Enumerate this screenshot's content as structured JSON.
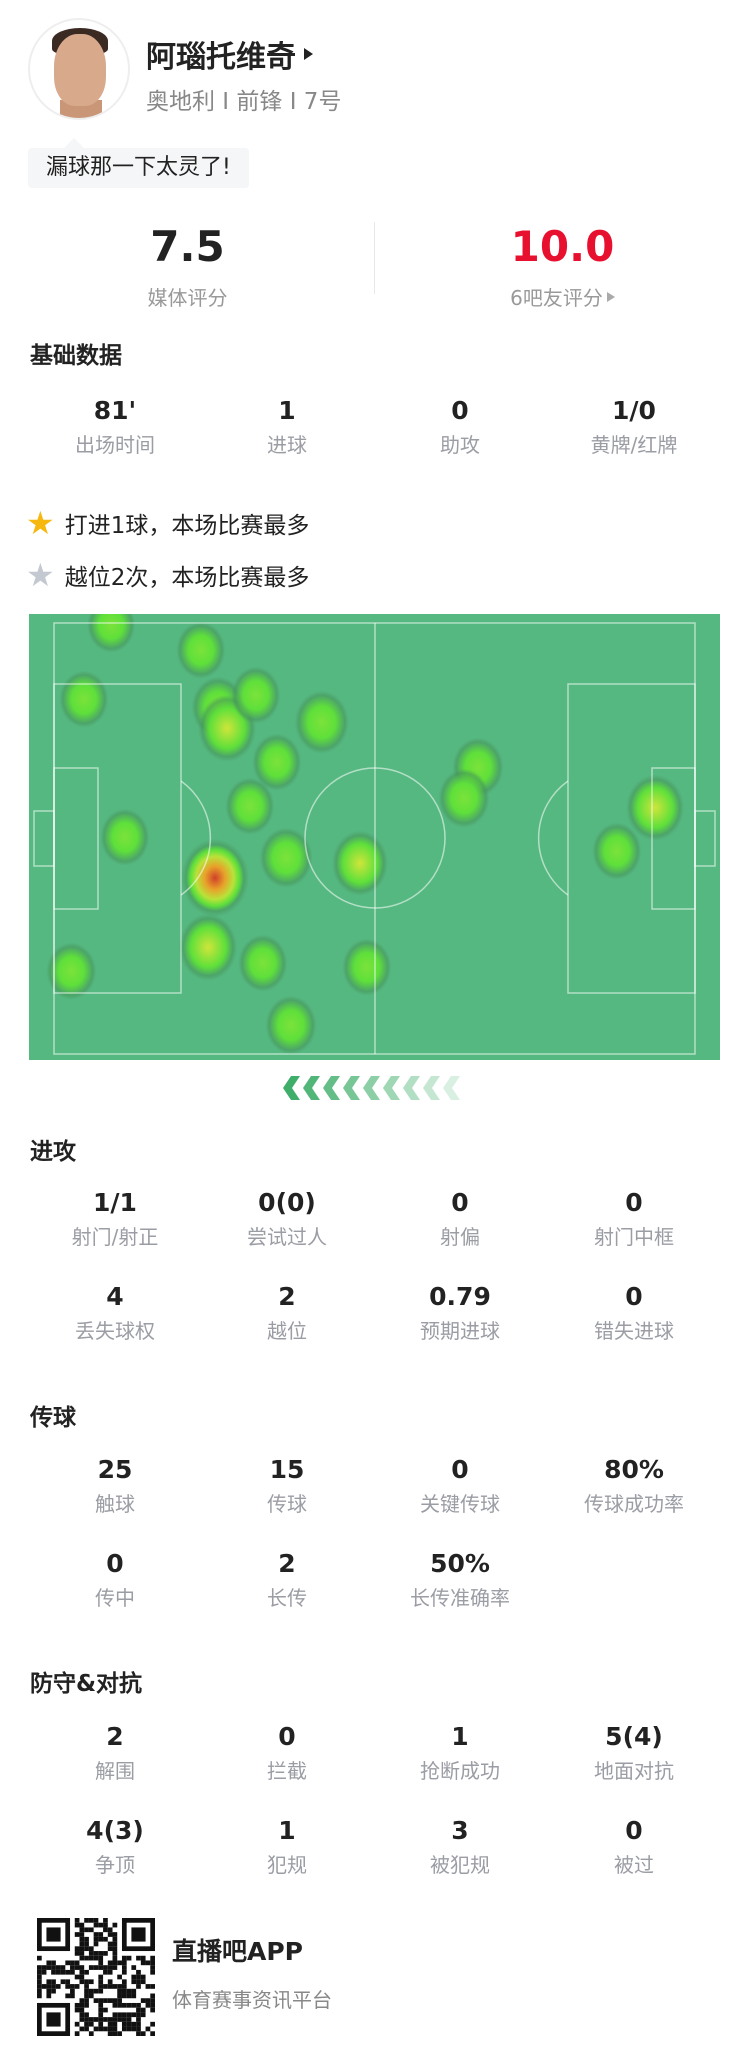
{
  "player": {
    "name": "阿瑙托维奇",
    "subtitle": "奥地利 I 前锋 I 7号",
    "comment": "漏球那一下太灵了!"
  },
  "ratings": {
    "media": {
      "value": "7.5",
      "label": "媒体评分"
    },
    "fans": {
      "value": "10.0",
      "label": "6吧友评分",
      "color": "#e8102f"
    }
  },
  "basic": {
    "title": "基础数据",
    "stats": [
      {
        "value": "81'",
        "label": "出场时间"
      },
      {
        "value": "1",
        "label": "进球"
      },
      {
        "value": "0",
        "label": "助攻"
      },
      {
        "value": "1/0",
        "label": "黄牌/红牌"
      }
    ]
  },
  "highlights": [
    {
      "icon": "gold-star-icon",
      "color": "#f6b80f",
      "text": "打进1球，本场比赛最多"
    },
    {
      "icon": "silver-star-icon",
      "color": "#c4c8d0",
      "text": "越位2次，本场比赛最多"
    }
  ],
  "heatmap": {
    "attack_direction": "left",
    "pitch_color": "#55b880",
    "points": [
      {
        "x": 8.9,
        "y": 0.5,
        "i": 0.4
      },
      {
        "x": 22.9,
        "y": 6.3,
        "i": 0.45
      },
      {
        "x": 4.7,
        "y": 17.6,
        "i": 0.45
      },
      {
        "x": 25.6,
        "y": 19.5,
        "i": 0.55
      },
      {
        "x": 27.0,
        "y": 24.4,
        "i": 0.7
      },
      {
        "x": 31.5,
        "y": 16.7,
        "i": 0.45
      },
      {
        "x": 41.8,
        "y": 23.0,
        "i": 0.6
      },
      {
        "x": 34.8,
        "y": 32.3,
        "i": 0.45
      },
      {
        "x": 66.1,
        "y": 33.4,
        "i": 0.5
      },
      {
        "x": 64.0,
        "y": 40.6,
        "i": 0.5
      },
      {
        "x": 30.6,
        "y": 42.5,
        "i": 0.45
      },
      {
        "x": 11.1,
        "y": 49.7,
        "i": 0.45
      },
      {
        "x": 93.8,
        "y": 42.9,
        "i": 0.7
      },
      {
        "x": 87.8,
        "y": 52.9,
        "i": 0.45
      },
      {
        "x": 36.2,
        "y": 54.5,
        "i": 0.55
      },
      {
        "x": 47.7,
        "y": 55.7,
        "i": 0.65
      },
      {
        "x": 25.1,
        "y": 59.2,
        "i": 1.0
      },
      {
        "x": 24.0,
        "y": 75.2,
        "i": 0.7
      },
      {
        "x": 2.7,
        "y": 80.7,
        "i": 0.45
      },
      {
        "x": 32.6,
        "y": 78.9,
        "i": 0.45
      },
      {
        "x": 48.8,
        "y": 79.8,
        "i": 0.45
      },
      {
        "x": 37.0,
        "y": 93.3,
        "i": 0.5
      }
    ]
  },
  "attack": {
    "title": "进攻",
    "stats": [
      {
        "value": "1/1",
        "label": "射门/射正"
      },
      {
        "value": "0(0)",
        "label": "尝试过人"
      },
      {
        "value": "0",
        "label": "射偏"
      },
      {
        "value": "0",
        "label": "射门中框"
      },
      {
        "value": "4",
        "label": "丢失球权"
      },
      {
        "value": "2",
        "label": "越位"
      },
      {
        "value": "0.79",
        "label": "预期进球"
      },
      {
        "value": "0",
        "label": "错失进球"
      }
    ]
  },
  "passing": {
    "title": "传球",
    "stats": [
      {
        "value": "25",
        "label": "触球"
      },
      {
        "value": "15",
        "label": "传球"
      },
      {
        "value": "0",
        "label": "关键传球"
      },
      {
        "value": "80%",
        "label": "传球成功率"
      },
      {
        "value": "0",
        "label": "传中"
      },
      {
        "value": "2",
        "label": "长传"
      },
      {
        "value": "50%",
        "label": "长传准确率"
      }
    ]
  },
  "defense": {
    "title": "防守&对抗",
    "stats": [
      {
        "value": "2",
        "label": "解围"
      },
      {
        "value": "0",
        "label": "拦截"
      },
      {
        "value": "1",
        "label": "抢断成功"
      },
      {
        "value": "5(4)",
        "label": "地面对抗"
      },
      {
        "value": "4(3)",
        "label": "争顶"
      },
      {
        "value": "1",
        "label": "犯规"
      },
      {
        "value": "3",
        "label": "被犯规"
      },
      {
        "value": "0",
        "label": "被过"
      }
    ]
  },
  "footer": {
    "app_name": "直播吧APP",
    "slogan": "体育赛事资讯平台"
  }
}
